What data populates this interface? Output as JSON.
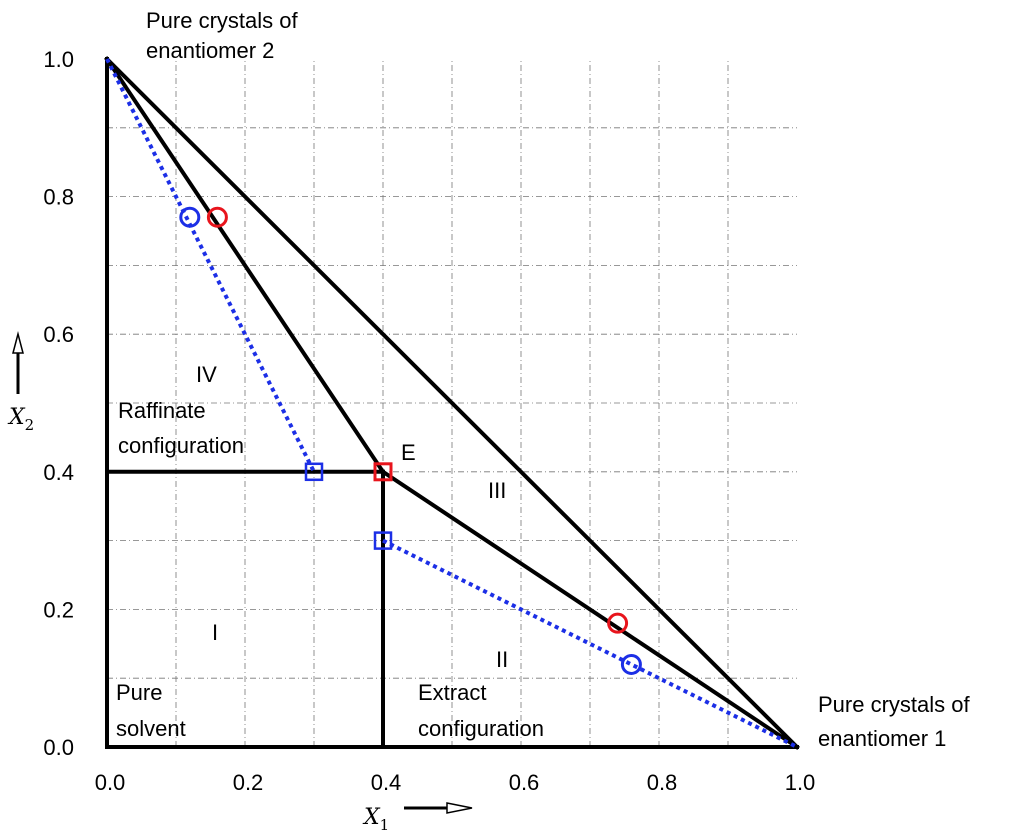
{
  "chart_data": {
    "type": "scatter",
    "xlabel": "X",
    "xlabel_sub": "1",
    "ylabel": "X",
    "ylabel_sub": "2",
    "xlim": [
      0,
      1
    ],
    "ylim": [
      0,
      1
    ],
    "grid": true,
    "x_ticks": [
      {
        "value": 0.0,
        "label": "0.0"
      },
      {
        "value": 0.2,
        "label": "0.2"
      },
      {
        "value": 0.4,
        "label": "0.4"
      },
      {
        "value": 0.6,
        "label": "0.6"
      },
      {
        "value": 0.8,
        "label": "0.8"
      },
      {
        "value": 1.0,
        "label": "1.0"
      }
    ],
    "y_ticks": [
      {
        "value": 0.0,
        "label": "0.0"
      },
      {
        "value": 0.2,
        "label": "0.2"
      },
      {
        "value": 0.4,
        "label": "0.4"
      },
      {
        "value": 0.6,
        "label": "0.6"
      },
      {
        "value": 0.8,
        "label": "0.8"
      },
      {
        "value": 1.0,
        "label": "1.0"
      }
    ],
    "grid_values": [
      0.1,
      0.2,
      0.3,
      0.4,
      0.5,
      0.6,
      0.7,
      0.8,
      0.9
    ],
    "solid_lines": [
      {
        "x": [
          0,
          0
        ],
        "y": [
          0,
          1
        ]
      },
      {
        "x": [
          0,
          1
        ],
        "y": [
          0,
          0
        ]
      },
      {
        "x": [
          0,
          1
        ],
        "y": [
          1,
          0
        ]
      },
      {
        "x": [
          0,
          0.4
        ],
        "y": [
          1,
          0.4
        ]
      },
      {
        "x": [
          0.4,
          1
        ],
        "y": [
          0.4,
          0
        ]
      },
      {
        "x": [
          0,
          0.4
        ],
        "y": [
          0.4,
          0.4
        ]
      },
      {
        "x": [
          0.4,
          0.4
        ],
        "y": [
          0,
          0.4
        ]
      }
    ],
    "dotted_lines": [
      {
        "x": [
          0,
          0.3
        ],
        "y": [
          1,
          0.4
        ]
      },
      {
        "x": [
          0.4,
          1
        ],
        "y": [
          0.3,
          0
        ]
      }
    ],
    "red_circles": [
      {
        "x": 0.16,
        "y": 0.77
      },
      {
        "x": 0.74,
        "y": 0.18
      }
    ],
    "blue_circles": [
      {
        "x": 0.12,
        "y": 0.77
      },
      {
        "x": 0.76,
        "y": 0.12
      }
    ],
    "red_squares": [
      {
        "x": 0.4,
        "y": 0.4
      }
    ],
    "blue_squares": [
      {
        "x": 0.3,
        "y": 0.4
      },
      {
        "x": 0.4,
        "y": 0.3
      }
    ],
    "colors": {
      "axes": "#000000",
      "grid": "#777777",
      "red": "#e8141c",
      "blue": "#1c2fe6"
    },
    "annotations": {
      "top_left_1": "Pure crystals of",
      "top_left_2": "enantiomer 2",
      "bottom_right_1": "Pure crystals of",
      "bottom_right_2": "enantiomer 1",
      "region_iv": "IV",
      "raffinate_1": "Raffinate",
      "raffinate_2": "configuration",
      "point_e": "E",
      "region_iii": "III",
      "region_i": "I",
      "region_ii": "II",
      "pure_1": "Pure",
      "pure_2": "solvent",
      "extract_1": "Extract",
      "extract_2": "configuration"
    }
  }
}
